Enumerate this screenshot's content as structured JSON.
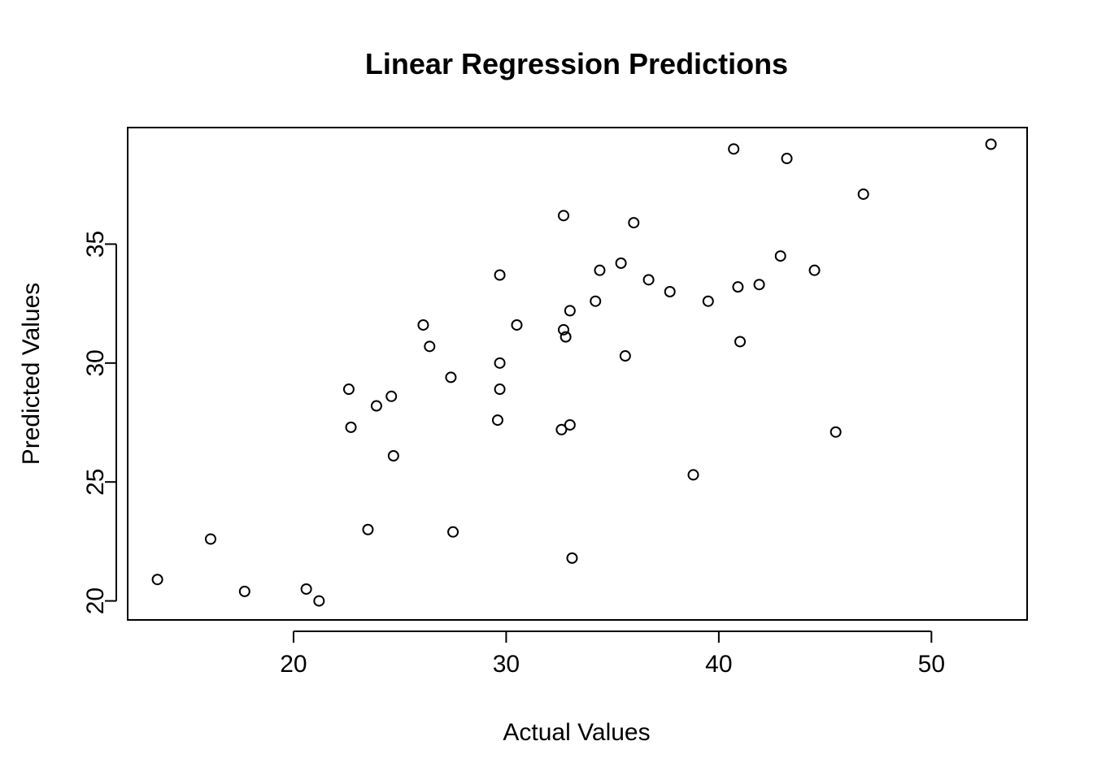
{
  "chart_data": {
    "type": "scatter",
    "title": "Linear Regression Predictions",
    "xlabel": "Actual Values",
    "ylabel": "Predicted Values",
    "xlim": [
      12.2,
      54.5
    ],
    "ylim": [
      19.2,
      39.9
    ],
    "xticks": [
      20,
      30,
      40,
      50
    ],
    "yticks": [
      20,
      25,
      30,
      35
    ],
    "xtick_labels": [
      "20",
      "30",
      "40",
      "50"
    ],
    "ytick_labels": [
      "20",
      "25",
      "30",
      "35"
    ],
    "grid": false,
    "legend": "none",
    "marker": "open-circle",
    "color": "#000000",
    "x": [
      13.6,
      16.1,
      17.7,
      20.6,
      21.2,
      22.6,
      22.7,
      23.5,
      23.9,
      24.6,
      24.7,
      26.1,
      26.4,
      27.4,
      27.5,
      29.6,
      29.7,
      29.7,
      29.7,
      30.5,
      32.6,
      32.7,
      32.7,
      32.8,
      33.0,
      33.0,
      33.1,
      34.2,
      34.4,
      35.4,
      35.6,
      36.0,
      36.7,
      37.7,
      38.8,
      39.5,
      40.7,
      40.9,
      41.0,
      41.9,
      42.9,
      43.2,
      44.5,
      45.5,
      46.8,
      52.8
    ],
    "y": [
      20.9,
      22.6,
      20.4,
      20.5,
      20.0,
      28.9,
      27.3,
      23.0,
      28.2,
      28.6,
      26.1,
      31.6,
      30.7,
      29.4,
      22.9,
      27.6,
      33.7,
      30.0,
      28.9,
      31.6,
      27.2,
      31.4,
      36.2,
      31.1,
      27.4,
      32.2,
      21.8,
      32.6,
      33.9,
      34.2,
      30.3,
      35.9,
      33.5,
      33.0,
      25.3,
      32.6,
      39.0,
      33.2,
      30.9,
      33.3,
      34.5,
      38.6,
      33.9,
      27.1,
      37.1,
      39.2
    ]
  }
}
